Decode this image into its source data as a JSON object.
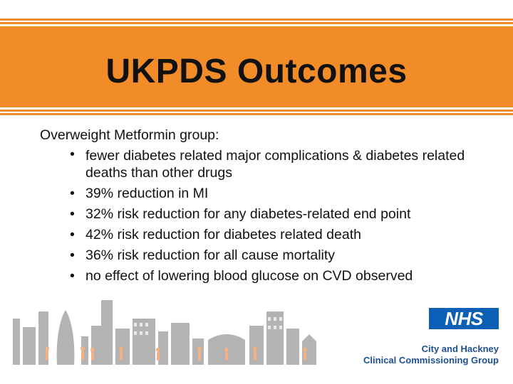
{
  "slide": {
    "title": "UKPDS Outcomes",
    "lead": "Overweight Metformin group:",
    "bullets": [
      "fewer diabetes related major complications & diabetes related deaths than other drugs",
      "39% reduction in MI",
      "32% risk reduction for any diabetes-related end point",
      "42% risk reduction for diabetes related death",
      "36% risk reduction for all cause mortality",
      "no effect of lowering blood glucose on CVD observed"
    ],
    "bullet_glyph": "•"
  },
  "footer": {
    "nhs_logo": "NHS",
    "org_line1": "City and Hackney",
    "org_line2": "Clinical Commissioning Group"
  },
  "colors": {
    "accent": "#f28c28",
    "nhs_blue": "#0b5fb4",
    "org_text": "#1f4f8f",
    "skyline_grey": "#9a9a9a",
    "figures": "#f4b183"
  }
}
